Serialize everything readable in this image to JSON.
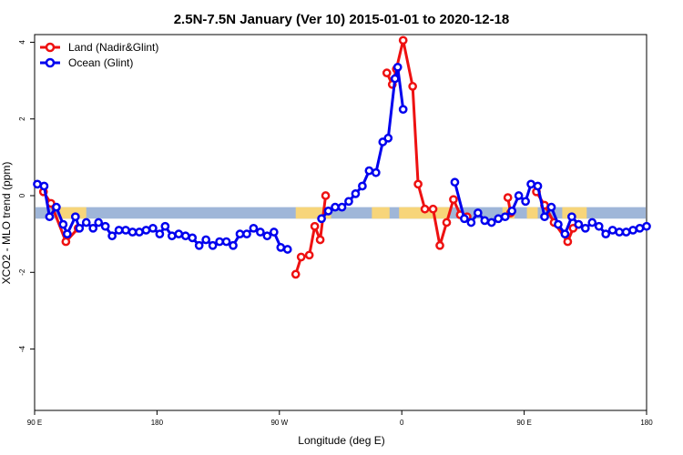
{
  "chart_data": {
    "type": "line",
    "title": "2.5N-7.5N January (Ver 10)   2015-01-01 to 2020-12-18",
    "xlabel": "Longitude (deg E)",
    "ylabel": "XCO2 - MLO trend (ppm)",
    "x_ticks": [
      {
        "x": 90,
        "label": "90 E"
      },
      {
        "x": 180,
        "label": "180"
      },
      {
        "x": 270,
        "label": "90 W"
      },
      {
        "x": 360,
        "label": "0"
      },
      {
        "x": 450,
        "label": "90 E"
      },
      {
        "x": 540,
        "label": "180"
      }
    ],
    "xlim": [
      90,
      540
    ],
    "y_ticks": [
      -4,
      -2,
      0,
      2,
      4
    ],
    "ylim": [
      -5.6,
      4.2
    ],
    "grid": false,
    "legend_position": "top-left",
    "series": [
      {
        "name": "Land (Nadir&Glint)",
        "color": "#ee1111",
        "points": [
          [
            96.5,
            0.1
          ],
          [
            102,
            -0.2
          ],
          [
            113,
            -1.2
          ],
          [
            122,
            -0.85
          ],
          [
            282,
            -2.05
          ],
          [
            286,
            -1.6
          ],
          [
            292,
            -1.55
          ],
          [
            296,
            -0.8
          ],
          [
            300,
            -1.15
          ],
          [
            304,
            0
          ],
          [
            349,
            3.2
          ],
          [
            353,
            2.9
          ],
          [
            356,
            3.3
          ],
          [
            361,
            4.05
          ],
          [
            368,
            2.85
          ],
          [
            372,
            0.3
          ],
          [
            377,
            -0.35
          ],
          [
            383,
            -0.35
          ],
          [
            388,
            -1.3
          ],
          [
            393,
            -0.7
          ],
          [
            398,
            -0.1
          ],
          [
            403,
            -0.5
          ],
          [
            408,
            -0.55
          ],
          [
            438,
            -0.05
          ],
          [
            440,
            -0.45
          ],
          [
            459,
            0.1
          ],
          [
            465,
            -0.25
          ],
          [
            472,
            -0.7
          ],
          [
            482,
            -1.2
          ],
          [
            486,
            -0.85
          ],
          [
            490,
            -0.75
          ]
        ]
      },
      {
        "name": "Ocean (Glint)",
        "color": "#0000ee",
        "points": [
          [
            92,
            0.3
          ],
          [
            97,
            0.25
          ],
          [
            101,
            -0.55
          ],
          [
            106,
            -0.3
          ],
          [
            111,
            -0.75
          ],
          [
            114,
            -1.0
          ],
          [
            120,
            -0.55
          ],
          [
            123,
            -0.85
          ],
          [
            128,
            -0.7
          ],
          [
            133,
            -0.85
          ],
          [
            137,
            -0.7
          ],
          [
            142,
            -0.8
          ],
          [
            147,
            -1.05
          ],
          [
            152,
            -0.9
          ],
          [
            157,
            -0.9
          ],
          [
            162,
            -0.95
          ],
          [
            167,
            -0.95
          ],
          [
            172,
            -0.9
          ],
          [
            177,
            -0.85
          ],
          [
            182,
            -1.0
          ],
          [
            186,
            -0.8
          ],
          [
            191,
            -1.05
          ],
          [
            196,
            -1.0
          ],
          [
            201,
            -1.05
          ],
          [
            206,
            -1.1
          ],
          [
            211,
            -1.3
          ],
          [
            216,
            -1.15
          ],
          [
            221,
            -1.3
          ],
          [
            226,
            -1.2
          ],
          [
            231,
            -1.2
          ],
          [
            236,
            -1.3
          ],
          [
            241,
            -1.0
          ],
          [
            246,
            -1.0
          ],
          [
            251,
            -0.85
          ],
          [
            256,
            -0.95
          ],
          [
            261,
            -1.05
          ],
          [
            266,
            -0.95
          ],
          [
            271,
            -1.35
          ],
          [
            276,
            -1.4
          ],
          [
            301,
            -0.6
          ],
          [
            306,
            -0.4
          ],
          [
            311,
            -0.3
          ],
          [
            316,
            -0.3
          ],
          [
            321,
            -0.15
          ],
          [
            326,
            0.05
          ],
          [
            331,
            0.25
          ],
          [
            336,
            0.65
          ],
          [
            341,
            0.6
          ],
          [
            346,
            1.4
          ],
          [
            350,
            1.5
          ],
          [
            355,
            3.05
          ],
          [
            357,
            3.35
          ],
          [
            361,
            2.25
          ],
          [
            399,
            0.35
          ],
          [
            406,
            -0.6
          ],
          [
            411,
            -0.7
          ],
          [
            416,
            -0.45
          ],
          [
            421,
            -0.65
          ],
          [
            426,
            -0.7
          ],
          [
            431,
            -0.6
          ],
          [
            436,
            -0.55
          ],
          [
            441,
            -0.4
          ],
          [
            446,
            0
          ],
          [
            451,
            -0.15
          ],
          [
            455,
            0.3
          ],
          [
            460,
            0.25
          ],
          [
            465,
            -0.55
          ],
          [
            470,
            -0.3
          ],
          [
            475,
            -0.75
          ],
          [
            480,
            -1.0
          ],
          [
            485,
            -0.55
          ],
          [
            490,
            -0.75
          ],
          [
            495,
            -0.85
          ],
          [
            500,
            -0.7
          ],
          [
            505,
            -0.8
          ],
          [
            510,
            -1.0
          ],
          [
            515,
            -0.9
          ],
          [
            520,
            -0.95
          ],
          [
            525,
            -0.95
          ],
          [
            530,
            -0.9
          ],
          [
            535,
            -0.85
          ],
          [
            540,
            -0.8
          ]
        ]
      }
    ],
    "background_band": {
      "y_range": [
        -0.6,
        -0.3
      ],
      "ocean_color": "#9fb6d8",
      "land_color": "#f7d57a",
      "land_ranges": [
        [
          107,
          128
        ],
        [
          282,
          308
        ],
        [
          338,
          351
        ],
        [
          358,
          395
        ],
        [
          434,
          443
        ],
        [
          452,
          460
        ],
        [
          478,
          496
        ]
      ]
    }
  }
}
